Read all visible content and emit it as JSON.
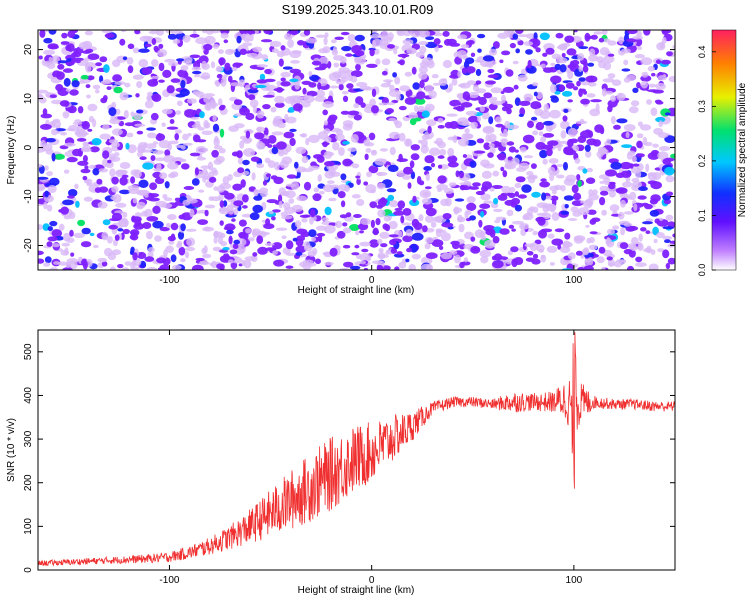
{
  "figure": {
    "title": "S199.2025.343.10.01.R09"
  },
  "colors": {
    "snr_line": "#f03030",
    "colormap": [
      "#ffffff",
      "#d8b8f8",
      "#8020ff",
      "#2020ff",
      "#00c0ff",
      "#00e060",
      "#f0f000",
      "#ff8000",
      "#ff2060"
    ]
  },
  "chart_data": [
    {
      "type": "heatmap",
      "title": "S199.2025.343.10.01.R09",
      "xlabel": "Height of straight line (km)",
      "ylabel": "Frequency (Hz)",
      "xlim": [
        -165,
        150
      ],
      "ylim": [
        -25,
        24
      ],
      "x_ticks": [
        -100,
        0,
        100
      ],
      "y_ticks": [
        -20,
        -10,
        0,
        10,
        20
      ],
      "colorbar": {
        "label": "Normalized spectral amplitude",
        "range": [
          0,
          0.44
        ],
        "ticks": [
          "0.0",
          "0.1",
          "0.2",
          "0.3",
          "0.4"
        ]
      },
      "note_values": "dense speckle field of normalized amplitudes, mostly 0.0-0.08 (white/purple) with sparse blobs up to ~0.2 (blue/cyan/green/yellow); faint lighter vertical band near x=-80"
    },
    {
      "type": "line",
      "xlabel": "Height of straight line (km)",
      "ylabel": "SNR (10 * v/v)",
      "xlim": [
        -165,
        150
      ],
      "ylim": [
        0,
        550
      ],
      "x_ticks": [
        -100,
        0,
        100
      ],
      "y_ticks": [
        0,
        100,
        200,
        300,
        400,
        500
      ],
      "series": [
        {
          "color": "#f03030",
          "x": [
            -165,
            -150,
            -130,
            -110,
            -100,
            -90,
            -80,
            -70,
            -60,
            -50,
            -40,
            -30,
            -20,
            -10,
            0,
            10,
            20,
            30,
            40,
            50,
            60,
            70,
            80,
            90,
            95,
            100,
            110,
            120,
            130,
            140,
            150
          ],
          "y": [
            15,
            18,
            22,
            26,
            30,
            40,
            55,
            75,
            100,
            130,
            160,
            190,
            220,
            250,
            270,
            300,
            330,
            370,
            385,
            385,
            380,
            385,
            385,
            385,
            390,
            380,
            385,
            380,
            380,
            375,
            375
          ],
          "noise": [
            6,
            7,
            8,
            10,
            12,
            15,
            20,
            28,
            40,
            55,
            70,
            80,
            85,
            80,
            70,
            55,
            35,
            15,
            12,
            12,
            12,
            25,
            20,
            25,
            45,
            70,
            15,
            12,
            12,
            12,
            12
          ]
        }
      ]
    }
  ]
}
